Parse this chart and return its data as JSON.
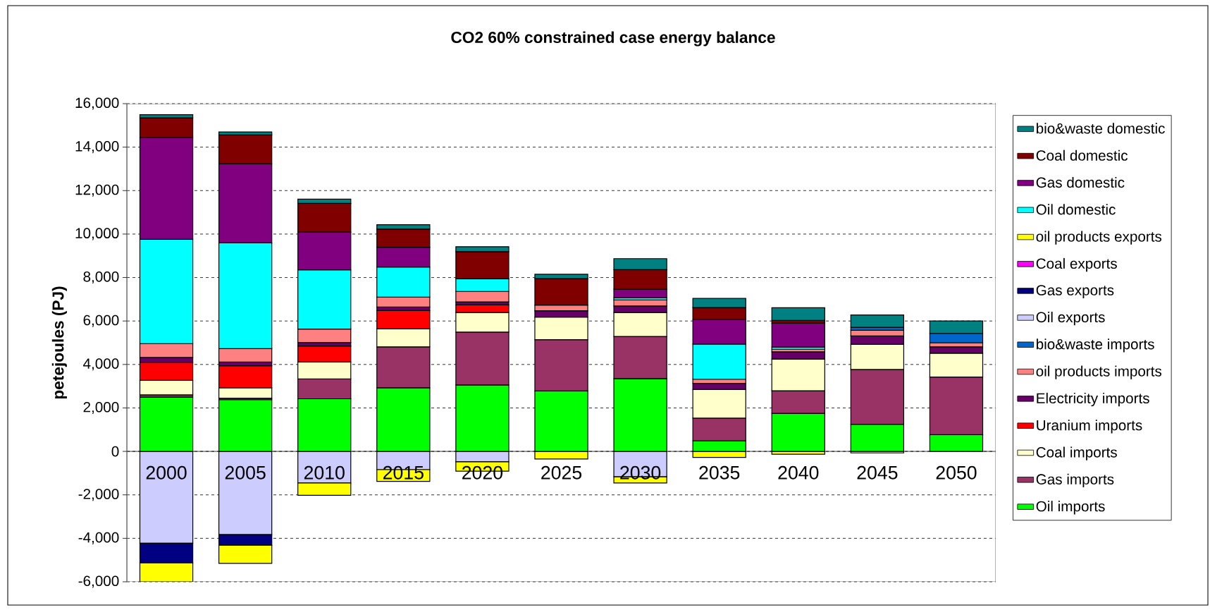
{
  "chart_data": {
    "type": "bar",
    "title": "CO2 60% constrained case energy balance",
    "ylabel": "petejoules (PJ)",
    "categories": [
      "2000",
      "2005",
      "2010",
      "2015",
      "2020",
      "2025",
      "2030",
      "2035",
      "2040",
      "2045",
      "2050"
    ],
    "stacked": true,
    "series": [
      {
        "name": "Oil imports",
        "color": "#00ff00",
        "values": [
          2500,
          2380,
          2420,
          2930,
          3060,
          2780,
          3350,
          490,
          1750,
          1250,
          770
        ]
      },
      {
        "name": "Gas imports",
        "color": "#993366",
        "values": [
          100,
          70,
          910,
          1880,
          2430,
          2360,
          1940,
          1040,
          1040,
          2520,
          2650
        ]
      },
      {
        "name": "Coal imports",
        "color": "#ffffcc",
        "values": [
          670,
          480,
          780,
          830,
          900,
          1040,
          1100,
          1320,
          1460,
          1160,
          1100
        ]
      },
      {
        "name": "Uranium imports",
        "color": "#ff0000",
        "values": [
          830,
          1010,
          740,
          840,
          350,
          0,
          0,
          0,
          0,
          0,
          0
        ]
      },
      {
        "name": "Electricity imports",
        "color": "#660066",
        "values": [
          220,
          170,
          160,
          160,
          140,
          290,
          300,
          280,
          330,
          380,
          290
        ]
      },
      {
        "name": "oil products imports",
        "color": "#ff8080",
        "values": [
          640,
          620,
          620,
          460,
          480,
          260,
          280,
          190,
          120,
          260,
          190
        ]
      },
      {
        "name": "bio&waste imports",
        "color": "#0066cc",
        "values": [
          0,
          0,
          0,
          0,
          0,
          0,
          0,
          0,
          0,
          140,
          430
        ]
      },
      {
        "name": "Oil exports",
        "color": "#ccccff",
        "values": [
          -4230,
          -3830,
          -1450,
          -840,
          -480,
          0,
          -1170,
          0,
          0,
          0,
          0
        ]
      },
      {
        "name": "Gas exports",
        "color": "#000080",
        "values": [
          -900,
          -490,
          0,
          0,
          0,
          0,
          0,
          0,
          0,
          0,
          0
        ]
      },
      {
        "name": "Coal exports",
        "color": "#ff00ff",
        "values": [
          0,
          0,
          0,
          0,
          0,
          0,
          0,
          0,
          0,
          0,
          0
        ]
      },
      {
        "name": "oil products exports",
        "color": "#ffff00",
        "values": [
          -870,
          -830,
          -570,
          -540,
          -430,
          -350,
          -280,
          -280,
          -130,
          -70,
          0
        ]
      },
      {
        "name": "Oil domestic",
        "color": "#00ffff",
        "values": [
          4800,
          4870,
          2720,
          1380,
          580,
          0,
          100,
          1620,
          100,
          0,
          0
        ]
      },
      {
        "name": "Gas domestic",
        "color": "#800080",
        "values": [
          4680,
          3640,
          1740,
          910,
          0,
          0,
          390,
          1130,
          1100,
          0,
          0
        ]
      },
      {
        "name": "Coal domestic",
        "color": "#800000",
        "values": [
          910,
          1320,
          1320,
          840,
          1250,
          1220,
          900,
          550,
          130,
          0,
          0
        ]
      },
      {
        "name": "bio&waste domestic",
        "color": "#008080",
        "values": [
          140,
          140,
          200,
          200,
          230,
          200,
          510,
          420,
          580,
          570,
          570
        ]
      }
    ],
    "ylim": [
      -6000,
      16000
    ],
    "yticks": [
      {
        "value": -6000,
        "label": "-6,000"
      },
      {
        "value": -4000,
        "label": "-4,000"
      },
      {
        "value": -2000,
        "label": "-2,000"
      },
      0,
      {
        "value": 2000,
        "label": "2,000"
      },
      {
        "value": 4000,
        "label": "4,000"
      },
      {
        "value": 6000,
        "label": "6,000"
      },
      {
        "value": 8000,
        "label": "8,000"
      },
      {
        "value": 10000,
        "label": "10,000"
      },
      {
        "value": 12000,
        "label": "12,000"
      },
      {
        "value": 14000,
        "label": "14,000"
      },
      {
        "value": 16000,
        "label": "16,000"
      }
    ],
    "grid": "y",
    "legend": "right"
  }
}
